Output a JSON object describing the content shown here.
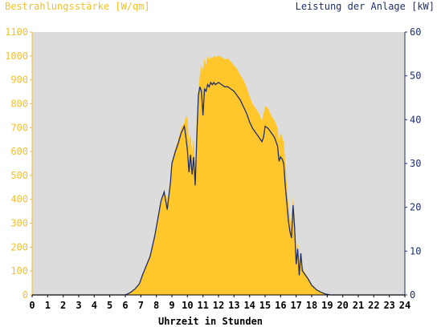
{
  "chart_data": {
    "type": "area",
    "left_axis_title": "Bestrahlungsstärke [W/qm]",
    "right_axis_title": "Leistung der Anlage [kW]",
    "xlabel": "Uhrzeit in Stunden",
    "xlim": [
      0,
      24
    ],
    "ylim_left": [
      0,
      1100
    ],
    "ylim_right": [
      0,
      60
    ],
    "x_ticks": [
      "0",
      "1",
      "2",
      "3",
      "4",
      "5",
      "6",
      "7",
      "8",
      "9",
      "10",
      "11",
      "12",
      "13",
      "14",
      "15",
      "16",
      "17",
      "18",
      "19",
      "20",
      "21",
      "22",
      "23",
      "24"
    ],
    "y_ticks_left": [
      "0",
      "100",
      "200",
      "300",
      "400",
      "500",
      "600",
      "700",
      "800",
      "900",
      "1000",
      "1100"
    ],
    "y_ticks_right": [
      "0",
      "10",
      "20",
      "30",
      "40",
      "50",
      "60"
    ],
    "colors": {
      "plot_bg": "#dcdcdc",
      "irradiance": "#ffc72c",
      "power": "#1e2f6e",
      "left_axis": "#f5c02a",
      "right_axis": "#1e2f6e"
    },
    "series": [
      {
        "name": "Bestrahlungsstärke",
        "axis": "left",
        "x": [
          0,
          6.0,
          6.3,
          6.6,
          6.9,
          7.1,
          7.3,
          7.6,
          7.9,
          8.1,
          8.3,
          8.5,
          8.7,
          8.9,
          9.0,
          9.2,
          9.4,
          9.6,
          9.8,
          9.9,
          10.0,
          10.1,
          10.2,
          10.3,
          10.4,
          10.5,
          10.6,
          10.7,
          10.8,
          10.9,
          11.0,
          11.1,
          11.2,
          11.3,
          11.4,
          11.5,
          11.6,
          11.7,
          11.8,
          12.0,
          12.2,
          12.4,
          12.6,
          12.8,
          13.0,
          13.2,
          13.4,
          13.6,
          13.8,
          14.0,
          14.2,
          14.4,
          14.6,
          14.8,
          14.9,
          15.0,
          15.2,
          15.4,
          15.6,
          15.8,
          15.9,
          16.0,
          16.1,
          16.2,
          16.3,
          16.4,
          16.5,
          16.6,
          16.7,
          16.8,
          16.9,
          17.0,
          17.1,
          17.2,
          17.3,
          17.4,
          17.6,
          17.8,
          18.0,
          18.3,
          18.6,
          18.9,
          19.2,
          19.5,
          24
        ],
        "values": [
          0,
          0,
          10,
          25,
          50,
          90,
          120,
          170,
          250,
          330,
          400,
          440,
          400,
          470,
          560,
          610,
          650,
          700,
          720,
          750,
          740,
          630,
          680,
          590,
          660,
          500,
          730,
          850,
          920,
          960,
          940,
          990,
          960,
          1000,
          985,
          995,
          990,
          1000,
          995,
          1000,
          995,
          985,
          990,
          975,
          960,
          945,
          920,
          900,
          870,
          830,
          800,
          780,
          760,
          730,
          760,
          790,
          780,
          750,
          730,
          700,
          640,
          680,
          660,
          640,
          560,
          460,
          380,
          320,
          300,
          410,
          330,
          170,
          220,
          120,
          180,
          120,
          90,
          70,
          45,
          25,
          15,
          5,
          0,
          0,
          0
        ]
      },
      {
        "name": "Leistung der Anlage",
        "axis": "right",
        "x": [
          0,
          6.0,
          6.3,
          6.6,
          6.9,
          7.1,
          7.3,
          7.6,
          7.9,
          8.1,
          8.3,
          8.5,
          8.7,
          8.9,
          9.0,
          9.2,
          9.4,
          9.6,
          9.8,
          9.9,
          10.0,
          10.1,
          10.2,
          10.3,
          10.4,
          10.5,
          10.6,
          10.7,
          10.8,
          10.9,
          11.0,
          11.1,
          11.2,
          11.3,
          11.4,
          11.5,
          11.6,
          11.7,
          11.8,
          12.0,
          12.2,
          12.4,
          12.6,
          12.8,
          13.0,
          13.2,
          13.4,
          13.6,
          13.8,
          14.0,
          14.2,
          14.4,
          14.6,
          14.8,
          14.9,
          15.0,
          15.2,
          15.4,
          15.6,
          15.8,
          15.9,
          16.0,
          16.1,
          16.2,
          16.3,
          16.4,
          16.5,
          16.6,
          16.7,
          16.8,
          16.9,
          17.0,
          17.1,
          17.2,
          17.3,
          17.4,
          17.6,
          17.8,
          18.0,
          18.3,
          18.6,
          18.9,
          19.2,
          19.5,
          24
        ],
        "values": [
          0,
          0,
          0.5,
          1.3,
          2.5,
          4.5,
          6.2,
          8.8,
          13.5,
          17.5,
          21.5,
          23.5,
          19.5,
          25.5,
          30.0,
          32.5,
          34.5,
          37.0,
          38.5,
          36.0,
          33.0,
          28.0,
          32.0,
          27.5,
          31.5,
          25.0,
          35.5,
          45.5,
          47.5,
          46.5,
          41.0,
          47.0,
          46.5,
          48.0,
          47.5,
          48.5,
          48.0,
          48.5,
          48.0,
          48.5,
          48.0,
          47.5,
          47.5,
          47.0,
          46.5,
          45.5,
          44.5,
          43.0,
          41.5,
          39.5,
          38.0,
          37.0,
          36.0,
          35.0,
          36.0,
          38.5,
          38.0,
          37.0,
          36.0,
          34.0,
          30.5,
          31.5,
          31.0,
          30.0,
          25.0,
          21.0,
          17.0,
          14.5,
          13.0,
          20.5,
          15.5,
          7.0,
          10.5,
          4.5,
          9.5,
          5.5,
          4.5,
          3.5,
          2.2,
          1.2,
          0.6,
          0.2,
          0,
          0,
          0
        ]
      }
    ],
    "grid": false,
    "legend": "none"
  }
}
